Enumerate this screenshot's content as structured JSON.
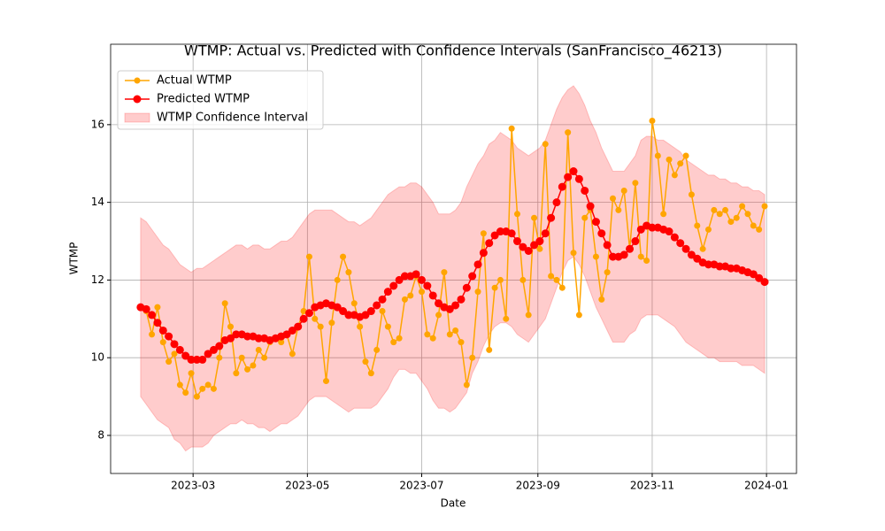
{
  "chart_data": {
    "type": "line",
    "title": "WTMP: Actual vs. Predicted with Confidence Intervals (SanFrancisco_46213)",
    "xlabel": "Date",
    "ylabel": "WTMP",
    "grid": true,
    "legend": "upper left",
    "xlim": [
      "2023-01-16",
      "2024-01-17"
    ],
    "ylim": [
      7.02,
      18.07
    ],
    "xticks": [
      {
        "value": "2023-03-01",
        "label": "2023-03"
      },
      {
        "value": "2023-05-01",
        "label": "2023-05"
      },
      {
        "value": "2023-07-01",
        "label": "2023-07"
      },
      {
        "value": "2023-09-01",
        "label": "2023-09"
      },
      {
        "value": "2023-11-01",
        "label": "2023-11"
      },
      {
        "value": "2024-01-01",
        "label": "2024-01"
      }
    ],
    "yticks": [
      8,
      10,
      12,
      14,
      16
    ],
    "x": [
      "2023-02-01",
      "2023-02-04",
      "2023-02-07",
      "2023-02-10",
      "2023-02-13",
      "2023-02-16",
      "2023-02-19",
      "2023-02-22",
      "2023-02-25",
      "2023-02-28",
      "2023-03-03",
      "2023-03-06",
      "2023-03-09",
      "2023-03-12",
      "2023-03-15",
      "2023-03-18",
      "2023-03-21",
      "2023-03-24",
      "2023-03-27",
      "2023-03-30",
      "2023-04-02",
      "2023-04-05",
      "2023-04-08",
      "2023-04-11",
      "2023-04-14",
      "2023-04-17",
      "2023-04-20",
      "2023-04-23",
      "2023-04-26",
      "2023-04-29",
      "2023-05-02",
      "2023-05-05",
      "2023-05-08",
      "2023-05-11",
      "2023-05-14",
      "2023-05-17",
      "2023-05-20",
      "2023-05-23",
      "2023-05-26",
      "2023-05-29",
      "2023-06-01",
      "2023-06-04",
      "2023-06-07",
      "2023-06-10",
      "2023-06-13",
      "2023-06-16",
      "2023-06-19",
      "2023-06-22",
      "2023-06-25",
      "2023-06-28",
      "2023-07-01",
      "2023-07-04",
      "2023-07-07",
      "2023-07-10",
      "2023-07-13",
      "2023-07-16",
      "2023-07-19",
      "2023-07-22",
      "2023-07-25",
      "2023-07-28",
      "2023-07-31",
      "2023-08-03",
      "2023-08-06",
      "2023-08-09",
      "2023-08-12",
      "2023-08-15",
      "2023-08-18",
      "2023-08-21",
      "2023-08-24",
      "2023-08-27",
      "2023-08-30",
      "2023-09-02",
      "2023-09-05",
      "2023-09-08",
      "2023-09-11",
      "2023-09-14",
      "2023-09-17",
      "2023-09-20",
      "2023-09-23",
      "2023-09-26",
      "2023-09-29",
      "2023-10-02",
      "2023-10-05",
      "2023-10-08",
      "2023-10-11",
      "2023-10-14",
      "2023-10-17",
      "2023-10-20",
      "2023-10-23",
      "2023-10-26",
      "2023-10-29",
      "2023-11-01",
      "2023-11-04",
      "2023-11-07",
      "2023-11-10",
      "2023-11-13",
      "2023-11-16",
      "2023-11-19",
      "2023-11-22",
      "2023-11-25",
      "2023-11-28",
      "2023-12-01",
      "2023-12-04",
      "2023-12-07",
      "2023-12-10",
      "2023-12-13",
      "2023-12-16",
      "2023-12-19",
      "2023-12-22",
      "2023-12-25",
      "2023-12-28",
      "2023-12-31"
    ],
    "interval": {
      "name": "WTMP Confidence Interval",
      "color": "red",
      "lower": [
        9.0,
        8.8,
        8.6,
        8.4,
        8.3,
        8.2,
        7.9,
        7.8,
        7.6,
        7.7,
        7.7,
        7.7,
        7.8,
        8.0,
        8.1,
        8.2,
        8.3,
        8.3,
        8.4,
        8.3,
        8.3,
        8.2,
        8.2,
        8.1,
        8.2,
        8.3,
        8.3,
        8.4,
        8.5,
        8.7,
        8.9,
        9.0,
        9.0,
        9.0,
        8.9,
        8.8,
        8.7,
        8.6,
        8.7,
        8.7,
        8.7,
        8.7,
        8.8,
        9.0,
        9.2,
        9.5,
        9.7,
        9.7,
        9.6,
        9.6,
        9.4,
        9.2,
        8.9,
        8.7,
        8.7,
        8.6,
        8.7,
        8.9,
        9.1,
        9.6,
        9.9,
        10.3,
        10.6,
        10.8,
        10.9,
        10.9,
        10.8,
        10.6,
        10.5,
        10.4,
        10.6,
        10.8,
        11.0,
        11.4,
        11.8,
        12.2,
        12.5,
        12.6,
        12.4,
        12.1,
        11.7,
        11.3,
        11.0,
        10.7,
        10.4,
        10.4,
        10.4,
        10.6,
        10.7,
        11.0,
        11.1,
        11.1,
        11.1,
        11.0,
        10.9,
        10.8,
        10.6,
        10.4,
        10.3,
        10.2,
        10.1,
        10.0,
        10.0,
        9.9,
        9.9,
        9.9,
        9.9,
        9.8,
        9.8,
        9.8,
        9.7,
        9.6
      ],
      "upper": [
        13.6,
        13.5,
        13.3,
        13.1,
        12.9,
        12.8,
        12.6,
        12.4,
        12.3,
        12.2,
        12.3,
        12.3,
        12.4,
        12.5,
        12.6,
        12.7,
        12.8,
        12.9,
        12.9,
        12.8,
        12.9,
        12.9,
        12.8,
        12.8,
        12.9,
        13.0,
        13.0,
        13.1,
        13.3,
        13.5,
        13.7,
        13.8,
        13.8,
        13.8,
        13.8,
        13.7,
        13.6,
        13.5,
        13.5,
        13.4,
        13.5,
        13.6,
        13.8,
        14.0,
        14.2,
        14.3,
        14.4,
        14.4,
        14.5,
        14.5,
        14.4,
        14.2,
        14.0,
        13.7,
        13.7,
        13.7,
        13.8,
        14.0,
        14.4,
        14.7,
        15.0,
        15.2,
        15.5,
        15.6,
        15.8,
        15.7,
        15.6,
        15.4,
        15.3,
        15.2,
        15.3,
        15.4,
        15.6,
        16.0,
        16.4,
        16.7,
        16.9,
        17.0,
        16.8,
        16.5,
        16.1,
        15.8,
        15.4,
        15.1,
        14.8,
        14.8,
        14.8,
        15.0,
        15.2,
        15.6,
        15.7,
        15.7,
        15.6,
        15.6,
        15.5,
        15.4,
        15.3,
        15.1,
        15.0,
        14.9,
        14.8,
        14.7,
        14.7,
        14.6,
        14.6,
        14.5,
        14.5,
        14.4,
        14.4,
        14.3,
        14.3,
        14.2
      ]
    },
    "series": [
      {
        "name": "Actual WTMP",
        "color": "orange",
        "values": [
          11.3,
          11.2,
          10.6,
          11.3,
          10.4,
          9.9,
          10.1,
          9.3,
          9.1,
          9.6,
          9.0,
          9.2,
          9.3,
          9.2,
          10.0,
          11.4,
          10.8,
          9.6,
          10.0,
          9.7,
          9.8,
          10.2,
          10.0,
          10.4,
          10.5,
          10.4,
          10.6,
          10.1,
          10.8,
          11.2,
          12.6,
          11.0,
          10.8,
          9.4,
          10.9,
          12.0,
          12.6,
          12.2,
          11.4,
          10.8,
          9.9,
          9.6,
          10.2,
          11.2,
          10.8,
          10.4,
          10.5,
          11.5,
          11.6,
          12.1,
          11.7,
          10.6,
          10.5,
          11.1,
          12.2,
          10.6,
          10.7,
          10.4,
          9.3,
          10.0,
          11.7,
          13.2,
          10.2,
          11.8,
          12.0,
          11.0,
          15.9,
          13.7,
          12.0,
          11.1,
          13.6,
          12.8,
          15.5,
          12.1,
          12.0,
          11.8,
          15.8,
          12.7,
          11.1,
          13.6,
          13.8,
          12.6,
          11.5,
          12.2,
          14.1,
          13.8,
          14.3,
          12.8,
          14.5,
          12.6,
          12.5,
          16.1,
          15.2,
          13.7,
          15.1,
          14.7,
          15.0,
          15.2,
          14.2,
          13.4,
          12.8,
          13.3,
          13.8,
          13.7,
          13.8,
          13.5,
          13.6,
          13.9,
          13.7,
          13.4,
          13.3,
          13.9
        ]
      },
      {
        "name": "Predicted WTMP",
        "color": "red",
        "values": [
          11.3,
          11.25,
          11.1,
          10.9,
          10.7,
          10.55,
          10.35,
          10.2,
          10.05,
          9.95,
          9.95,
          9.95,
          10.1,
          10.2,
          10.3,
          10.45,
          10.5,
          10.6,
          10.6,
          10.55,
          10.55,
          10.5,
          10.5,
          10.45,
          10.5,
          10.55,
          10.6,
          10.7,
          10.8,
          11.0,
          11.15,
          11.3,
          11.35,
          11.4,
          11.35,
          11.3,
          11.2,
          11.1,
          11.1,
          11.05,
          11.1,
          11.2,
          11.35,
          11.5,
          11.7,
          11.85,
          12.0,
          12.1,
          12.1,
          12.15,
          12.0,
          11.85,
          11.6,
          11.4,
          11.3,
          11.25,
          11.35,
          11.5,
          11.8,
          12.1,
          12.4,
          12.7,
          12.95,
          13.15,
          13.25,
          13.25,
          13.2,
          13.0,
          12.85,
          12.75,
          12.9,
          13.0,
          13.2,
          13.6,
          14.0,
          14.4,
          14.65,
          14.8,
          14.6,
          14.3,
          13.9,
          13.5,
          13.2,
          12.9,
          12.6,
          12.6,
          12.65,
          12.8,
          13.0,
          13.3,
          13.4,
          13.35,
          13.35,
          13.3,
          13.25,
          13.1,
          12.95,
          12.8,
          12.65,
          12.55,
          12.45,
          12.4,
          12.4,
          12.35,
          12.35,
          12.3,
          12.3,
          12.25,
          12.2,
          12.15,
          12.05,
          11.95
        ]
      }
    ]
  }
}
